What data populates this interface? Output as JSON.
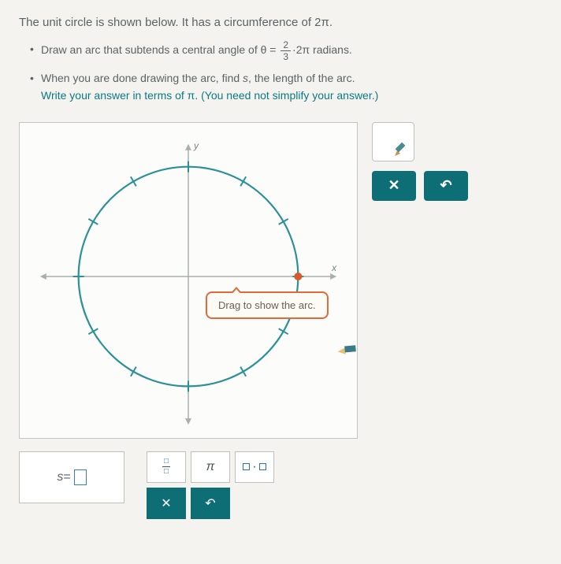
{
  "intro": "The unit circle is shown below. It has a circumference of 2π.",
  "bullet1": {
    "pre": "Draw an arc that subtends a central angle of θ = ",
    "frac_num": "2",
    "frac_den": "3",
    "post": "·2π radians."
  },
  "bullet2": {
    "line1_pre": "When you are done drawing the arc, find ",
    "var": "s",
    "line1_post": ", the length of the arc.",
    "line2": "Write your answer in terms of π. (You need not simplify your answer.)"
  },
  "diagram": {
    "y_label": "y",
    "x_label": "x",
    "tooltip": "Drag to show the arc.",
    "circle_color": "#2b9097",
    "axis_color": "#a8b0ae",
    "start_marker_color": "#d95a28",
    "radius": 140,
    "tick_count": 12,
    "tick_len": 7
  },
  "side": {
    "close_glyph": "✕",
    "undo_glyph": "↶"
  },
  "answer": {
    "var": "s",
    "equals": " = "
  },
  "toolbox": {
    "pi": "π",
    "dot": "·",
    "close": "✕",
    "undo": "↶"
  },
  "colors": {
    "teal": "#0e6e76",
    "border": "#c0c0bb",
    "orange": "#e06a3a"
  }
}
